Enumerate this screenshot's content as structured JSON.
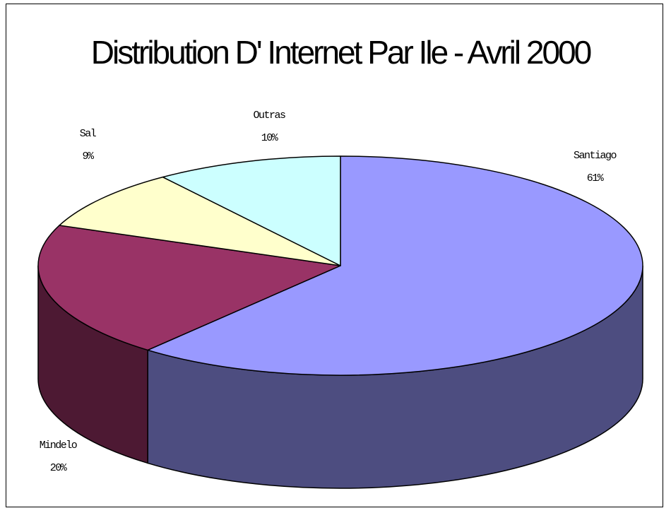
{
  "chart_data": {
    "type": "pie",
    "style": "3d",
    "title": "Distribution D' Internet Par Ile - Avril 2000",
    "slices": [
      {
        "label": "Santiago",
        "value": 61,
        "value_label": "61%",
        "top_color": "#9999ff",
        "side_color": "#4d4d80"
      },
      {
        "label": "Mindelo",
        "value": 20,
        "value_label": "20%",
        "top_color": "#993366",
        "side_color": "#4d1933"
      },
      {
        "label": "Sal",
        "value": 9,
        "value_label": "9%",
        "top_color": "#ffffcc",
        "side_color": "#808066"
      },
      {
        "label": "Outras",
        "value": 10,
        "value_label": "10%",
        "top_color": "#ccffff",
        "side_color": "#668080"
      }
    ]
  }
}
